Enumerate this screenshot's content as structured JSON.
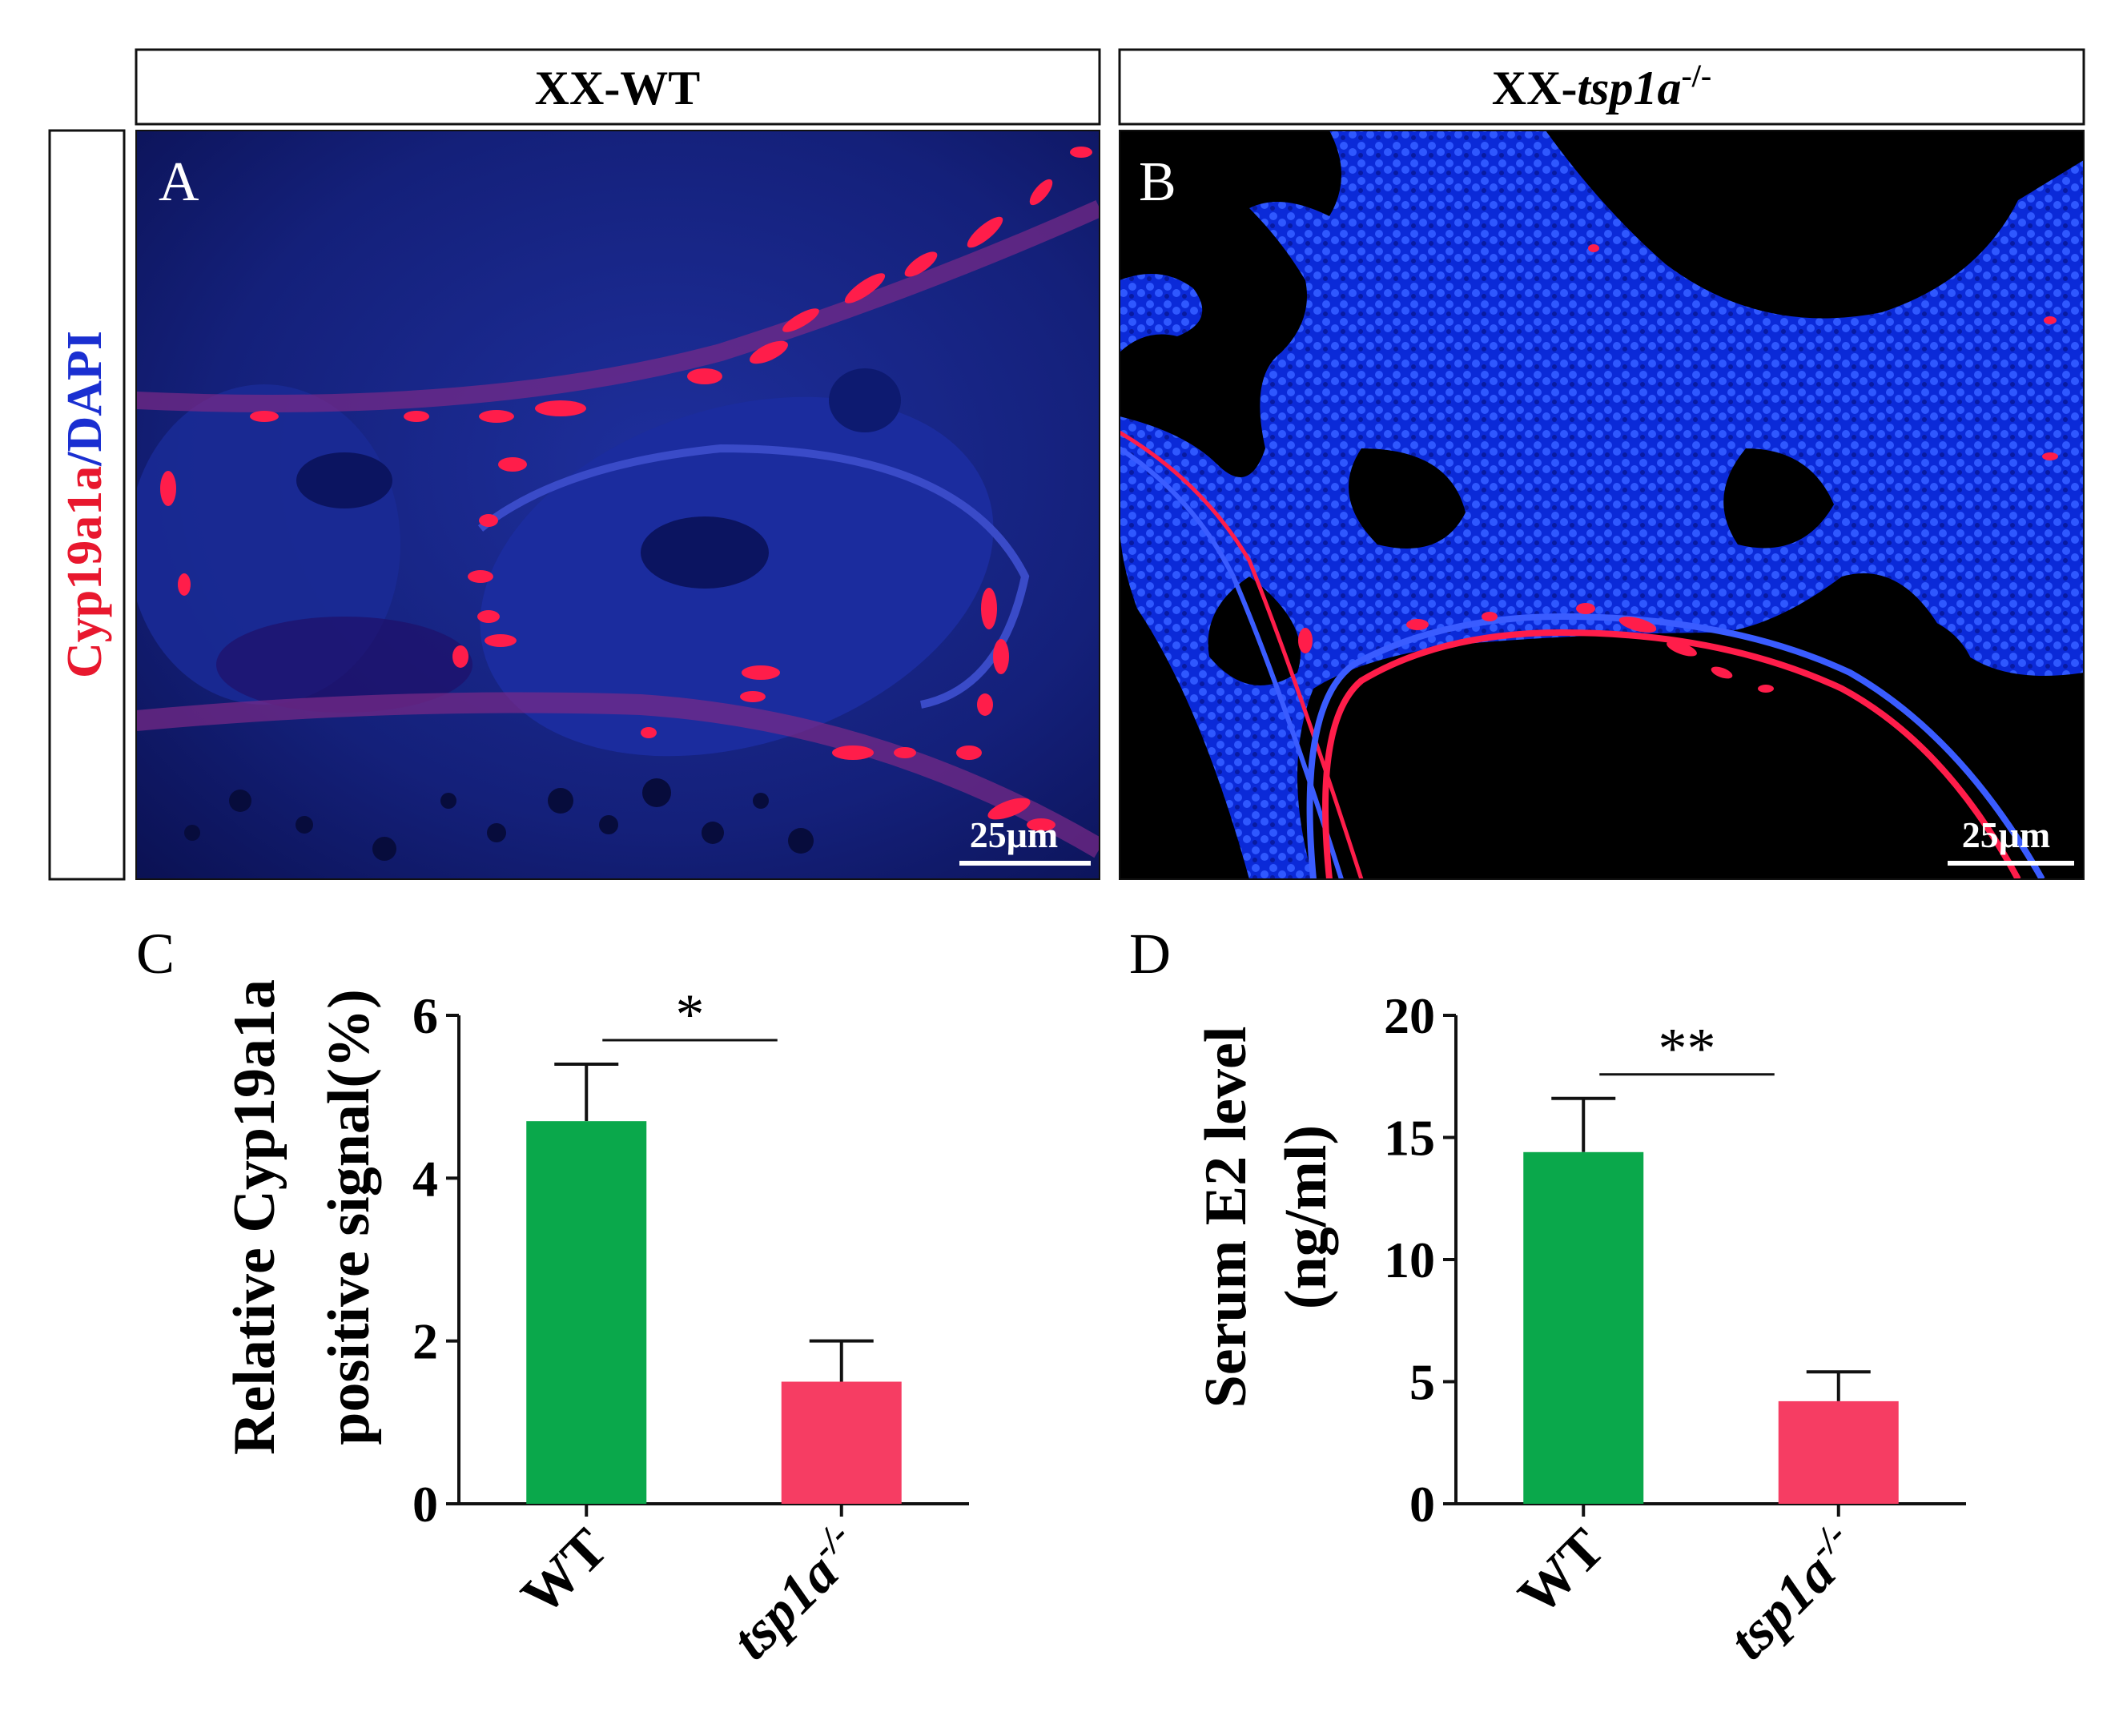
{
  "panels": {
    "A": {
      "letter": "A",
      "header": "XX-WT",
      "scalebar": "25μm"
    },
    "B": {
      "letter": "B",
      "header_prefix": "XX-",
      "header_italic": "tsp1a",
      "header_sup": "-/-",
      "scalebar": "25μm"
    },
    "side_label": {
      "part1": "Cyp19a1a",
      "part2": "/DAPI",
      "color1": "#e8182e",
      "color2": "#1a2fd1"
    }
  },
  "chart_data": [
    {
      "panel": "C",
      "type": "bar",
      "categories": [
        "WT",
        "tsp1a-/-"
      ],
      "category_labels": [
        {
          "main": "WT",
          "sup": ""
        },
        {
          "main": "tsp1a",
          "sup": "-/-"
        }
      ],
      "values": [
        4.7,
        1.5
      ],
      "errors": [
        0.7,
        0.5
      ],
      "colors": [
        "#0aa84b",
        "#f63d63"
      ],
      "ylabel_line1": "Relative Cyp19a1a",
      "ylabel_line2": "positive  signal(%)",
      "ylim": [
        0,
        6
      ],
      "yticks": [
        0,
        2,
        4,
        6
      ],
      "significance": "*"
    },
    {
      "panel": "D",
      "type": "bar",
      "categories": [
        "WT",
        "tsp1a-/-"
      ],
      "category_labels": [
        {
          "main": "WT",
          "sup": ""
        },
        {
          "main": "tsp1a",
          "sup": "-/-"
        }
      ],
      "values": [
        14.4,
        4.2
      ],
      "errors": [
        2.2,
        1.2
      ],
      "colors": [
        "#0aa84b",
        "#f63d63"
      ],
      "ylabel_line1": "Serum E2 level",
      "ylabel_line2": "(ng/ml)",
      "ylim": [
        0,
        20
      ],
      "yticks": [
        0,
        5,
        10,
        15,
        20
      ],
      "significance": "**"
    }
  ]
}
